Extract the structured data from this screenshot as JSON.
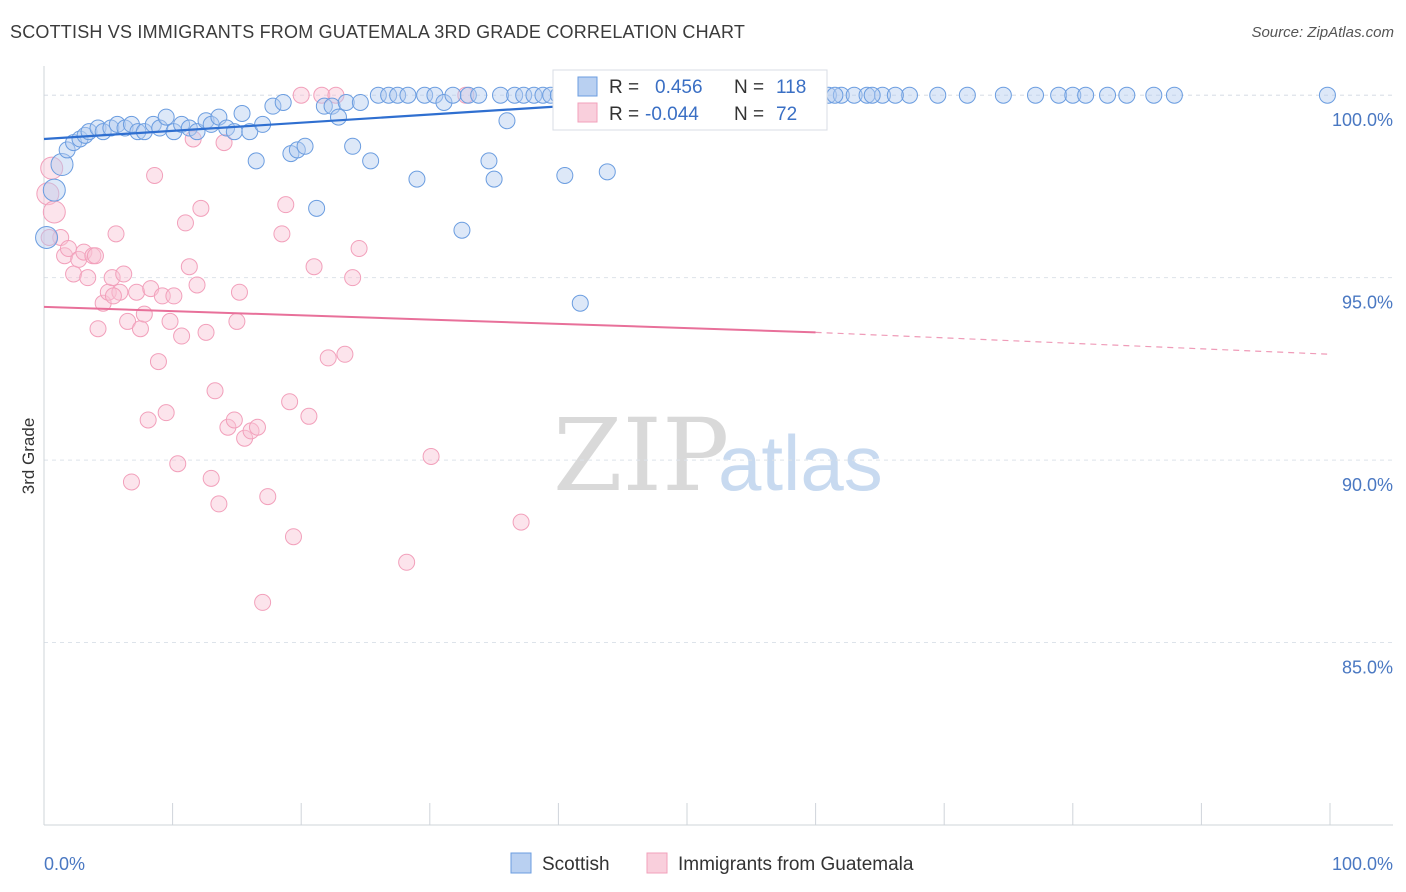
{
  "header": {
    "title": "SCOTTISH VS IMMIGRANTS FROM GUATEMALA 3RD GRADE CORRELATION CHART",
    "source": "Source: ZipAtlas.com"
  },
  "watermark": {
    "zip": "ZIP",
    "atlas": "atlas"
  },
  "stats": {
    "blue": {
      "r_label": "R =",
      "r_value": "0.456",
      "n_label": "N =",
      "n_value": "118"
    },
    "pink": {
      "r_label": "R =",
      "r_value": "-0.044",
      "n_label": "N =",
      "n_value": "72"
    }
  },
  "colors": {
    "blue": "#6b9de0",
    "blue_line": "#2f6fd0",
    "pink": "#f2a0bb",
    "pink_line": "#e8709a",
    "tick_text": "#4a78c2",
    "grid": "#dde3ea"
  },
  "chart_data": {
    "type": "scatter",
    "title": "SCOTTISH VS IMMIGRANTS FROM GUATEMALA 3RD GRADE CORRELATION CHART",
    "xlabel": "",
    "ylabel": "3rd Grade",
    "xlim": [
      0,
      100
    ],
    "ylim": [
      80.0,
      100.8
    ],
    "x_tick_labels": [
      "0.0%",
      "100.0%"
    ],
    "y_ticks": [
      85,
      90,
      95,
      100
    ],
    "y_tick_labels": [
      "85.0%",
      "90.0%",
      "95.0%",
      "100.0%"
    ],
    "grid": true,
    "legend_position": "bottom-center",
    "series": [
      {
        "name": "Scottish",
        "color": "#6b9de0",
        "trend": {
          "x": [
            0,
            56
          ],
          "y": [
            98.8,
            100.05
          ],
          "dash_to": null
        },
        "points": [
          [
            0.2,
            96.1
          ],
          [
            0.8,
            97.4
          ],
          [
            1.4,
            98.1
          ],
          [
            1.8,
            98.5
          ],
          [
            2.3,
            98.7
          ],
          [
            2.8,
            98.8
          ],
          [
            3.2,
            98.9
          ],
          [
            3.5,
            99.0
          ],
          [
            4.2,
            99.1
          ],
          [
            4.6,
            99.0
          ],
          [
            5.2,
            99.1
          ],
          [
            5.7,
            99.2
          ],
          [
            6.3,
            99.1
          ],
          [
            6.8,
            99.2
          ],
          [
            7.3,
            99.0
          ],
          [
            7.8,
            99.0
          ],
          [
            8.5,
            99.2
          ],
          [
            9.0,
            99.1
          ],
          [
            9.5,
            99.4
          ],
          [
            10.1,
            99.0
          ],
          [
            10.7,
            99.2
          ],
          [
            11.3,
            99.1
          ],
          [
            11.9,
            99.0
          ],
          [
            12.6,
            99.3
          ],
          [
            13.0,
            99.2
          ],
          [
            13.6,
            99.4
          ],
          [
            14.2,
            99.1
          ],
          [
            14.8,
            99.0
          ],
          [
            15.4,
            99.5
          ],
          [
            16.0,
            99.0
          ],
          [
            16.5,
            98.2
          ],
          [
            17.0,
            99.2
          ],
          [
            17.8,
            99.7
          ],
          [
            18.6,
            99.8
          ],
          [
            19.2,
            98.4
          ],
          [
            19.7,
            98.5
          ],
          [
            20.3,
            98.6
          ],
          [
            21.2,
            96.9
          ],
          [
            21.8,
            99.7
          ],
          [
            22.4,
            99.7
          ],
          [
            22.9,
            99.4
          ],
          [
            23.5,
            99.8
          ],
          [
            24.0,
            98.6
          ],
          [
            24.6,
            99.8
          ],
          [
            25.4,
            98.2
          ],
          [
            26.0,
            100.0
          ],
          [
            26.8,
            100.0
          ],
          [
            27.5,
            100.0
          ],
          [
            28.3,
            100.0
          ],
          [
            29.0,
            97.7
          ],
          [
            29.6,
            100.0
          ],
          [
            30.4,
            100.0
          ],
          [
            31.1,
            99.8
          ],
          [
            31.8,
            100.0
          ],
          [
            32.5,
            96.3
          ],
          [
            33.0,
            100.0
          ],
          [
            33.8,
            100.0
          ],
          [
            34.6,
            98.2
          ],
          [
            35.0,
            97.7
          ],
          [
            35.5,
            100.0
          ],
          [
            36.0,
            99.3
          ],
          [
            36.6,
            100.0
          ],
          [
            37.3,
            100.0
          ],
          [
            38.1,
            100.0
          ],
          [
            38.8,
            100.0
          ],
          [
            39.4,
            100.0
          ],
          [
            40.0,
            100.0
          ],
          [
            40.5,
            97.8
          ],
          [
            40.9,
            100.0
          ],
          [
            41.7,
            94.3
          ],
          [
            42.4,
            100.0
          ],
          [
            43.0,
            100.0
          ],
          [
            43.8,
            97.9
          ],
          [
            44.6,
            100.0
          ],
          [
            45.2,
            100.0
          ],
          [
            45.9,
            100.0
          ],
          [
            46.5,
            100.0
          ],
          [
            47.2,
            100.0
          ],
          [
            47.9,
            100.0
          ],
          [
            48.6,
            100.0
          ],
          [
            49.3,
            100.0
          ],
          [
            50.0,
            100.0
          ],
          [
            50.7,
            100.0
          ],
          [
            51.5,
            100.0
          ],
          [
            52.2,
            100.0
          ],
          [
            53.0,
            100.0
          ],
          [
            53.7,
            100.0
          ],
          [
            54.5,
            100.0
          ],
          [
            55.2,
            100.0
          ],
          [
            56.0,
            100.0
          ],
          [
            56.8,
            100.0
          ],
          [
            57.5,
            100.0
          ],
          [
            58.3,
            100.0
          ],
          [
            59.0,
            100.0
          ],
          [
            60.0,
            100.0
          ],
          [
            61.0,
            100.0
          ],
          [
            62.0,
            100.0
          ],
          [
            63.0,
            100.0
          ],
          [
            64.0,
            100.0
          ],
          [
            65.2,
            100.0
          ],
          [
            67.3,
            100.0
          ],
          [
            69.5,
            100.0
          ],
          [
            71.8,
            100.0
          ],
          [
            74.6,
            100.0
          ],
          [
            77.1,
            100.0
          ],
          [
            78.9,
            100.0
          ],
          [
            80.0,
            100.0
          ],
          [
            81.0,
            100.0
          ],
          [
            82.7,
            100.0
          ],
          [
            84.2,
            100.0
          ],
          [
            86.3,
            100.0
          ],
          [
            87.9,
            100.0
          ],
          [
            99.8,
            100.0
          ],
          [
            52.4,
            100.0
          ],
          [
            58.7,
            100.0
          ],
          [
            61.5,
            100.0
          ],
          [
            64.4,
            100.0
          ],
          [
            66.2,
            100.0
          ]
        ]
      },
      {
        "name": "Immigrants from Guatemala",
        "color": "#f2a0bb",
        "trend": {
          "x": [
            0,
            60
          ],
          "y": [
            94.2,
            93.5
          ],
          "dash_to": [
            100,
            92.9
          ]
        },
        "points": [
          [
            0.3,
            97.3
          ],
          [
            0.6,
            98.0
          ],
          [
            0.8,
            96.8
          ],
          [
            1.3,
            96.1
          ],
          [
            1.6,
            95.6
          ],
          [
            1.9,
            95.8
          ],
          [
            2.3,
            95.1
          ],
          [
            2.7,
            95.5
          ],
          [
            3.1,
            95.7
          ],
          [
            3.4,
            95.0
          ],
          [
            3.8,
            95.6
          ],
          [
            4.0,
            95.6
          ],
          [
            4.2,
            93.6
          ],
          [
            4.6,
            94.3
          ],
          [
            5.0,
            94.6
          ],
          [
            5.3,
            95.0
          ],
          [
            5.6,
            96.2
          ],
          [
            5.9,
            94.6
          ],
          [
            6.2,
            95.1
          ],
          [
            6.5,
            93.8
          ],
          [
            6.8,
            89.4
          ],
          [
            7.2,
            94.6
          ],
          [
            7.5,
            93.6
          ],
          [
            7.8,
            94.0
          ],
          [
            8.1,
            91.1
          ],
          [
            8.3,
            94.7
          ],
          [
            8.6,
            97.8
          ],
          [
            8.9,
            92.7
          ],
          [
            9.2,
            94.5
          ],
          [
            9.5,
            91.3
          ],
          [
            9.8,
            93.8
          ],
          [
            10.1,
            94.5
          ],
          [
            10.4,
            89.9
          ],
          [
            10.7,
            93.4
          ],
          [
            11.0,
            96.5
          ],
          [
            11.3,
            95.3
          ],
          [
            11.6,
            98.8
          ],
          [
            11.9,
            94.8
          ],
          [
            12.2,
            96.9
          ],
          [
            12.6,
            93.5
          ],
          [
            13.0,
            89.5
          ],
          [
            13.3,
            91.9
          ],
          [
            13.6,
            88.8
          ],
          [
            14.0,
            98.7
          ],
          [
            14.3,
            90.9
          ],
          [
            14.8,
            91.1
          ],
          [
            15.2,
            94.6
          ],
          [
            15.6,
            90.6
          ],
          [
            16.1,
            90.8
          ],
          [
            16.6,
            90.9
          ],
          [
            17.0,
            86.1
          ],
          [
            17.4,
            89.0
          ],
          [
            18.5,
            96.2
          ],
          [
            19.1,
            91.6
          ],
          [
            19.4,
            87.9
          ],
          [
            20.0,
            100.0
          ],
          [
            20.6,
            91.2
          ],
          [
            21.0,
            95.3
          ],
          [
            21.6,
            100.0
          ],
          [
            22.1,
            92.8
          ],
          [
            22.7,
            100.0
          ],
          [
            23.4,
            92.9
          ],
          [
            24.0,
            95.0
          ],
          [
            24.5,
            95.8
          ],
          [
            28.2,
            87.2
          ],
          [
            30.1,
            90.1
          ],
          [
            32.8,
            100.0
          ],
          [
            37.1,
            88.3
          ],
          [
            18.8,
            97.0
          ],
          [
            15.0,
            93.8
          ],
          [
            0.4,
            96.1
          ],
          [
            5.4,
            94.5
          ]
        ]
      }
    ]
  },
  "legend": {
    "items": [
      {
        "label": "Scottish",
        "color": "#6b9de0"
      },
      {
        "label": "Immigrants from Guatemala",
        "color": "#f2a0bb"
      }
    ]
  }
}
